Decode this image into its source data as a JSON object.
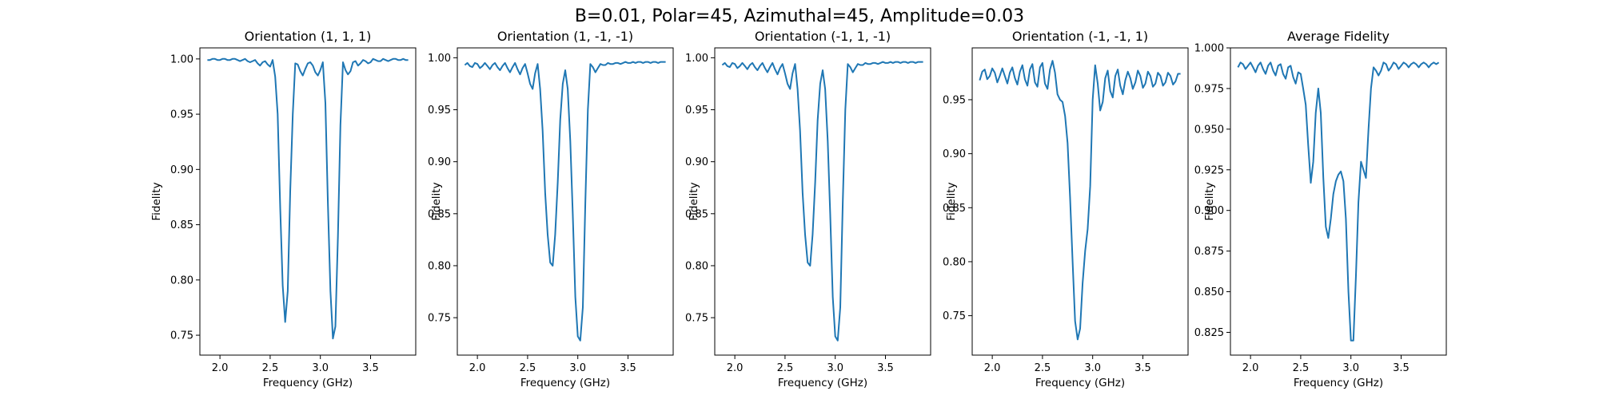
{
  "figure": {
    "suptitle": "B=0.01, Polar=45, Azimuthal=45, Amplitude=0.03",
    "line_color": "#1f77b4"
  },
  "chart_data": [
    {
      "type": "line",
      "title": "Orientation (1, 1, 1)",
      "xlabel": "Frequency (GHz)",
      "ylabel": "Fidelity",
      "xlim": [
        1.8,
        3.95
      ],
      "ylim": [
        0.732,
        1.01
      ],
      "xticks": [
        "2.0",
        "2.5",
        "3.0",
        "3.5"
      ],
      "yticks": [
        "0.75",
        "0.80",
        "0.85",
        "0.90",
        "0.95",
        "1.00"
      ],
      "grid": false,
      "series": [
        {
          "x": [
            1.875,
            1.9,
            1.925,
            1.95,
            1.975,
            2.0,
            2.025,
            2.05,
            2.075,
            2.1,
            2.125,
            2.15,
            2.175,
            2.2,
            2.225,
            2.25,
            2.275,
            2.3,
            2.325,
            2.35,
            2.375,
            2.4,
            2.425,
            2.45,
            2.475,
            2.5,
            2.525,
            2.55,
            2.575,
            2.6,
            2.625,
            2.65,
            2.675,
            2.7,
            2.725,
            2.75,
            2.775,
            2.8,
            2.825,
            2.85,
            2.875,
            2.9,
            2.925,
            2.95,
            2.975,
            3.0,
            3.025,
            3.05,
            3.075,
            3.1,
            3.125,
            3.15,
            3.175,
            3.2,
            3.225,
            3.25,
            3.275,
            3.3,
            3.325,
            3.35,
            3.375,
            3.4,
            3.425,
            3.45,
            3.475,
            3.5,
            3.525,
            3.55,
            3.575,
            3.6,
            3.625,
            3.65,
            3.675,
            3.7,
            3.725,
            3.75,
            3.775,
            3.8,
            3.825,
            3.85,
            3.875
          ],
          "values": [
            0.999,
            0.999,
            1.0,
            1.0,
            0.999,
            0.999,
            1.0,
            1.0,
            0.999,
            0.999,
            1.0,
            1.0,
            0.999,
            0.998,
            0.999,
            1.0,
            0.998,
            0.997,
            0.998,
            0.999,
            0.996,
            0.994,
            0.997,
            0.998,
            0.995,
            0.993,
            0.999,
            0.984,
            0.95,
            0.865,
            0.795,
            0.762,
            0.79,
            0.88,
            0.95,
            0.996,
            0.995,
            0.989,
            0.985,
            0.991,
            0.996,
            0.997,
            0.994,
            0.988,
            0.985,
            0.99,
            0.997,
            0.96,
            0.87,
            0.79,
            0.747,
            0.758,
            0.84,
            0.94,
            0.997,
            0.99,
            0.986,
            0.989,
            0.997,
            0.998,
            0.994,
            0.996,
            0.999,
            0.998,
            0.996,
            0.997,
            1.0,
            0.999,
            0.998,
            0.998,
            1.0,
            0.999,
            0.998,
            0.999,
            1.0,
            1.0,
            0.999,
            0.999,
            1.0,
            0.999,
            0.999
          ]
        }
      ]
    },
    {
      "type": "line",
      "title": "Orientation (1, -1, -1)",
      "xlabel": "Frequency (GHz)",
      "ylabel": "Fidelity",
      "xlim": [
        1.8,
        3.95
      ],
      "ylim": [
        0.714,
        1.0095
      ],
      "xticks": [
        "2.0",
        "2.5",
        "3.0",
        "3.5"
      ],
      "yticks": [
        "0.75",
        "0.80",
        "0.85",
        "0.90",
        "0.95",
        "1.00"
      ],
      "grid": false,
      "series": [
        {
          "x": [
            1.875,
            1.9,
            1.925,
            1.95,
            1.975,
            2.0,
            2.025,
            2.05,
            2.075,
            2.1,
            2.125,
            2.15,
            2.175,
            2.2,
            2.225,
            2.25,
            2.275,
            2.3,
            2.325,
            2.35,
            2.375,
            2.4,
            2.425,
            2.45,
            2.475,
            2.5,
            2.525,
            2.55,
            2.575,
            2.6,
            2.625,
            2.65,
            2.675,
            2.7,
            2.725,
            2.75,
            2.775,
            2.8,
            2.825,
            2.85,
            2.875,
            2.9,
            2.925,
            2.95,
            2.975,
            3.0,
            3.025,
            3.05,
            3.075,
            3.1,
            3.125,
            3.15,
            3.175,
            3.2,
            3.225,
            3.25,
            3.275,
            3.3,
            3.325,
            3.35,
            3.375,
            3.4,
            3.425,
            3.45,
            3.475,
            3.5,
            3.525,
            3.55,
            3.575,
            3.6,
            3.625,
            3.65,
            3.675,
            3.7,
            3.725,
            3.75,
            3.775,
            3.8,
            3.825,
            3.85,
            3.875
          ],
          "values": [
            0.993,
            0.995,
            0.992,
            0.991,
            0.995,
            0.994,
            0.99,
            0.992,
            0.995,
            0.992,
            0.989,
            0.993,
            0.995,
            0.991,
            0.988,
            0.992,
            0.995,
            0.99,
            0.986,
            0.991,
            0.995,
            0.989,
            0.984,
            0.99,
            0.994,
            0.985,
            0.975,
            0.97,
            0.985,
            0.994,
            0.97,
            0.93,
            0.87,
            0.83,
            0.803,
            0.8,
            0.83,
            0.88,
            0.94,
            0.975,
            0.988,
            0.97,
            0.92,
            0.85,
            0.77,
            0.732,
            0.728,
            0.76,
            0.86,
            0.95,
            0.994,
            0.991,
            0.986,
            0.99,
            0.994,
            0.993,
            0.993,
            0.995,
            0.994,
            0.994,
            0.995,
            0.995,
            0.994,
            0.995,
            0.996,
            0.995,
            0.995,
            0.996,
            0.995,
            0.996,
            0.996,
            0.995,
            0.996,
            0.996,
            0.995,
            0.996,
            0.996,
            0.995,
            0.996,
            0.996,
            0.996
          ]
        }
      ]
    },
    {
      "type": "line",
      "title": "Orientation (-1, 1, -1)",
      "xlabel": "Frequency (GHz)",
      "ylabel": "Fidelity",
      "xlim": [
        1.8,
        3.95
      ],
      "ylim": [
        0.714,
        1.0095
      ],
      "xticks": [
        "2.0",
        "2.5",
        "3.0",
        "3.5"
      ],
      "yticks": [
        "0.75",
        "0.80",
        "0.85",
        "0.90",
        "0.95",
        "1.00"
      ],
      "grid": false,
      "series": [
        {
          "x": [
            1.875,
            1.9,
            1.925,
            1.95,
            1.975,
            2.0,
            2.025,
            2.05,
            2.075,
            2.1,
            2.125,
            2.15,
            2.175,
            2.2,
            2.225,
            2.25,
            2.275,
            2.3,
            2.325,
            2.35,
            2.375,
            2.4,
            2.425,
            2.45,
            2.475,
            2.5,
            2.525,
            2.55,
            2.575,
            2.6,
            2.625,
            2.65,
            2.675,
            2.7,
            2.725,
            2.75,
            2.775,
            2.8,
            2.825,
            2.85,
            2.875,
            2.9,
            2.925,
            2.95,
            2.975,
            3.0,
            3.025,
            3.05,
            3.075,
            3.1,
            3.125,
            3.15,
            3.175,
            3.2,
            3.225,
            3.25,
            3.275,
            3.3,
            3.325,
            3.35,
            3.375,
            3.4,
            3.425,
            3.45,
            3.475,
            3.5,
            3.525,
            3.55,
            3.575,
            3.6,
            3.625,
            3.65,
            3.675,
            3.7,
            3.725,
            3.75,
            3.775,
            3.8,
            3.825,
            3.85,
            3.875
          ],
          "values": [
            0.993,
            0.995,
            0.992,
            0.991,
            0.995,
            0.994,
            0.99,
            0.992,
            0.995,
            0.992,
            0.989,
            0.993,
            0.995,
            0.991,
            0.988,
            0.992,
            0.995,
            0.99,
            0.986,
            0.991,
            0.995,
            0.989,
            0.984,
            0.99,
            0.994,
            0.985,
            0.975,
            0.97,
            0.985,
            0.994,
            0.97,
            0.93,
            0.87,
            0.83,
            0.803,
            0.8,
            0.83,
            0.88,
            0.94,
            0.975,
            0.988,
            0.97,
            0.92,
            0.85,
            0.77,
            0.732,
            0.728,
            0.76,
            0.86,
            0.95,
            0.994,
            0.991,
            0.986,
            0.99,
            0.994,
            0.993,
            0.993,
            0.995,
            0.994,
            0.994,
            0.995,
            0.995,
            0.994,
            0.995,
            0.996,
            0.995,
            0.995,
            0.996,
            0.995,
            0.996,
            0.996,
            0.995,
            0.996,
            0.996,
            0.995,
            0.996,
            0.996,
            0.995,
            0.996,
            0.996,
            0.996
          ]
        }
      ]
    },
    {
      "type": "line",
      "title": "Orientation (-1, -1, 1)",
      "xlabel": "Frequency (GHz)",
      "ylabel": "Fidelity",
      "xlim": [
        1.8,
        3.95
      ],
      "ylim": [
        0.7135,
        0.998
      ],
      "xticks": [
        "2.0",
        "2.5",
        "3.0",
        "3.5"
      ],
      "yticks": [
        "0.75",
        "0.80",
        "0.85",
        "0.90",
        "0.95"
      ],
      "grid": false,
      "series": [
        {
          "x": [
            1.875,
            1.9,
            1.925,
            1.95,
            1.975,
            2.0,
            2.025,
            2.05,
            2.075,
            2.1,
            2.125,
            2.15,
            2.175,
            2.2,
            2.225,
            2.25,
            2.275,
            2.3,
            2.325,
            2.35,
            2.375,
            2.4,
            2.425,
            2.45,
            2.475,
            2.5,
            2.525,
            2.55,
            2.575,
            2.6,
            2.625,
            2.65,
            2.675,
            2.7,
            2.725,
            2.75,
            2.775,
            2.8,
            2.825,
            2.85,
            2.875,
            2.9,
            2.925,
            2.95,
            2.975,
            3.0,
            3.025,
            3.05,
            3.075,
            3.1,
            3.125,
            3.15,
            3.175,
            3.2,
            3.225,
            3.25,
            3.275,
            3.3,
            3.325,
            3.35,
            3.375,
            3.4,
            3.425,
            3.45,
            3.475,
            3.5,
            3.525,
            3.55,
            3.575,
            3.6,
            3.625,
            3.65,
            3.675,
            3.7,
            3.725,
            3.75,
            3.775,
            3.8,
            3.825,
            3.85,
            3.875
          ],
          "values": [
            0.968,
            0.976,
            0.978,
            0.969,
            0.972,
            0.979,
            0.975,
            0.966,
            0.972,
            0.979,
            0.972,
            0.965,
            0.975,
            0.98,
            0.97,
            0.964,
            0.976,
            0.982,
            0.969,
            0.963,
            0.978,
            0.983,
            0.966,
            0.962,
            0.98,
            0.984,
            0.965,
            0.96,
            0.978,
            0.986,
            0.975,
            0.955,
            0.95,
            0.948,
            0.935,
            0.91,
            0.86,
            0.8,
            0.745,
            0.728,
            0.738,
            0.78,
            0.81,
            0.83,
            0.87,
            0.95,
            0.982,
            0.965,
            0.94,
            0.948,
            0.97,
            0.977,
            0.958,
            0.952,
            0.972,
            0.978,
            0.963,
            0.955,
            0.968,
            0.976,
            0.97,
            0.96,
            0.966,
            0.977,
            0.972,
            0.961,
            0.965,
            0.976,
            0.972,
            0.962,
            0.965,
            0.975,
            0.972,
            0.963,
            0.966,
            0.975,
            0.972,
            0.964,
            0.967,
            0.974,
            0.974
          ]
        }
      ]
    },
    {
      "type": "line",
      "title": "Average Fidelity",
      "xlabel": "Frequency (GHz)",
      "ylabel": "Fidelity",
      "xlim": [
        1.8,
        3.95
      ],
      "ylim": [
        0.811,
        1.0
      ],
      "xticks": [
        "2.0",
        "2.5",
        "3.0",
        "3.5"
      ],
      "yticks": [
        "0.825",
        "0.850",
        "0.875",
        "0.900",
        "0.925",
        "0.950",
        "0.975",
        "1.000"
      ],
      "grid": false,
      "series": [
        {
          "x": [
            1.875,
            1.9,
            1.925,
            1.95,
            1.975,
            2.0,
            2.025,
            2.05,
            2.075,
            2.1,
            2.125,
            2.15,
            2.175,
            2.2,
            2.225,
            2.25,
            2.275,
            2.3,
            2.325,
            2.35,
            2.375,
            2.4,
            2.425,
            2.45,
            2.475,
            2.5,
            2.525,
            2.55,
            2.575,
            2.6,
            2.625,
            2.65,
            2.675,
            2.7,
            2.725,
            2.75,
            2.775,
            2.8,
            2.825,
            2.85,
            2.875,
            2.9,
            2.925,
            2.95,
            2.975,
            3.0,
            3.025,
            3.05,
            3.075,
            3.1,
            3.125,
            3.15,
            3.175,
            3.2,
            3.225,
            3.25,
            3.275,
            3.3,
            3.325,
            3.35,
            3.375,
            3.4,
            3.425,
            3.45,
            3.475,
            3.5,
            3.525,
            3.55,
            3.575,
            3.6,
            3.625,
            3.65,
            3.675,
            3.7,
            3.725,
            3.75,
            3.775,
            3.8,
            3.825,
            3.85,
            3.875
          ],
          "values": [
            0.988,
            0.991,
            0.99,
            0.987,
            0.989,
            0.991,
            0.988,
            0.985,
            0.989,
            0.991,
            0.987,
            0.984,
            0.989,
            0.991,
            0.986,
            0.983,
            0.989,
            0.99,
            0.984,
            0.981,
            0.988,
            0.989,
            0.982,
            0.978,
            0.985,
            0.984,
            0.975,
            0.965,
            0.94,
            0.917,
            0.93,
            0.96,
            0.975,
            0.96,
            0.92,
            0.89,
            0.883,
            0.895,
            0.91,
            0.918,
            0.922,
            0.924,
            0.918,
            0.895,
            0.85,
            0.82,
            0.82,
            0.86,
            0.905,
            0.93,
            0.925,
            0.92,
            0.95,
            0.975,
            0.988,
            0.986,
            0.983,
            0.986,
            0.991,
            0.99,
            0.986,
            0.988,
            0.991,
            0.99,
            0.987,
            0.989,
            0.991,
            0.99,
            0.988,
            0.99,
            0.991,
            0.99,
            0.988,
            0.99,
            0.991,
            0.99,
            0.988,
            0.99,
            0.991,
            0.99,
            0.991
          ]
        }
      ]
    }
  ]
}
